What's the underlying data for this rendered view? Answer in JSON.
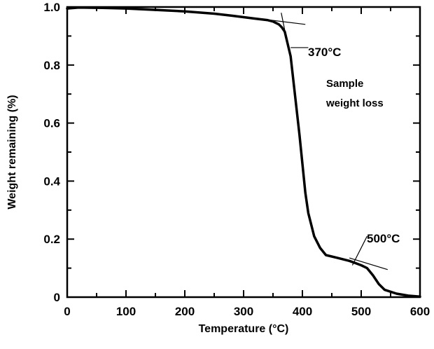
{
  "chart_data": {
    "type": "line",
    "title": "",
    "xlabel": "Temperature (°C)",
    "ylabel": "Weight remaining (%)",
    "xlim": [
      0,
      600
    ],
    "ylim": [
      0,
      1.0
    ],
    "x_ticks": [
      0,
      100,
      200,
      300,
      400,
      500,
      600
    ],
    "x_tick_labels": [
      "0",
      "100",
      "200",
      "300",
      "400",
      "500",
      "600"
    ],
    "y_ticks": [
      0,
      0.2,
      0.4,
      0.6,
      0.8,
      1.0
    ],
    "y_tick_labels": [
      "0",
      "0.2",
      "0.4",
      "0.6",
      "0.8",
      "1.0"
    ],
    "grid": false,
    "legend": "none",
    "series": [
      {
        "x": [
          0,
          20,
          60,
          100,
          150,
          200,
          250,
          280,
          300,
          320,
          340,
          350,
          360,
          365,
          370,
          380,
          390,
          395,
          400,
          405,
          410,
          420,
          430,
          440,
          460,
          480,
          500,
          510,
          520,
          530,
          540,
          560,
          580,
          600
        ],
        "y": [
          0.995,
          0.998,
          0.997,
          0.995,
          0.99,
          0.985,
          0.977,
          0.97,
          0.965,
          0.96,
          0.955,
          0.95,
          0.94,
          0.93,
          0.915,
          0.83,
          0.65,
          0.56,
          0.46,
          0.36,
          0.29,
          0.21,
          0.17,
          0.145,
          0.135,
          0.125,
          0.11,
          0.1,
          0.075,
          0.045,
          0.025,
          0.012,
          0.005,
          0.002
        ]
      }
    ],
    "annotations": [
      {
        "text": "370°C",
        "x": 370,
        "y": 0.94
      },
      {
        "text": "500°C",
        "x": 500,
        "y": 0.11
      }
    ],
    "side_note": [
      "Sample",
      "weight loss"
    ],
    "line_color": "#000000"
  }
}
